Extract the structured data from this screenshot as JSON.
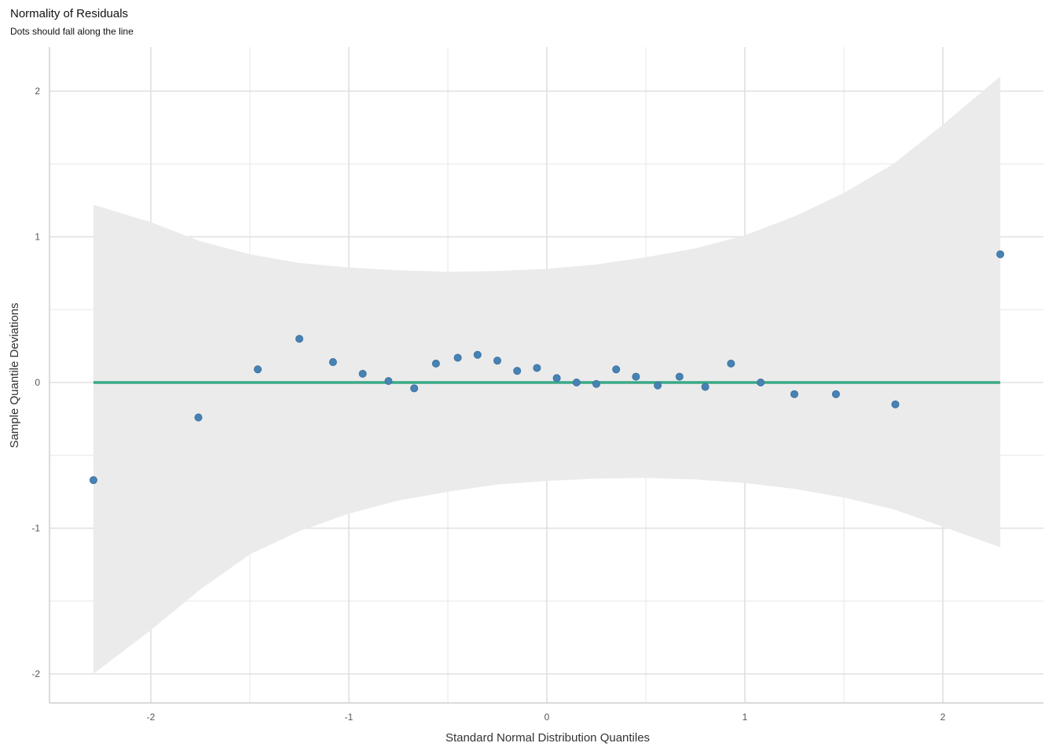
{
  "chart_data": {
    "type": "scatter",
    "title": "Normality of Residuals",
    "subtitle": "Dots should fall along the line",
    "xlabel": "Standard Normal Distribution Quantiles",
    "ylabel": "Sample Quantile Deviations",
    "xlim": [
      -2.5,
      2.5
    ],
    "ylim": [
      -2.2,
      2.3
    ],
    "x_ticks": [
      -2,
      -1,
      0,
      1,
      2
    ],
    "x_tick_labels": [
      "-2",
      "-1",
      "0",
      "1",
      "2"
    ],
    "y_ticks": [
      -2,
      -1,
      0,
      1,
      2
    ],
    "y_tick_labels": [
      "-2",
      "-1",
      "0",
      "1",
      "2"
    ],
    "grid": true,
    "reference_line": {
      "y": 0,
      "x_from": -2.29,
      "x_to": 2.29,
      "color": "#3aa986"
    },
    "band": {
      "color": "#ebebeb",
      "x": [
        -2.29,
        -2.0,
        -1.75,
        -1.5,
        -1.25,
        -1.0,
        -0.75,
        -0.5,
        -0.25,
        0.0,
        0.25,
        0.5,
        0.75,
        1.0,
        1.25,
        1.5,
        1.75,
        2.0,
        2.29
      ],
      "upper": [
        1.22,
        1.1,
        0.97,
        0.88,
        0.82,
        0.79,
        0.77,
        0.76,
        0.765,
        0.78,
        0.81,
        0.86,
        0.92,
        1.01,
        1.14,
        1.3,
        1.5,
        1.77,
        2.1
      ],
      "lower": [
        -2.0,
        -1.7,
        -1.42,
        -1.18,
        -1.02,
        -0.9,
        -0.81,
        -0.75,
        -0.7,
        -0.675,
        -0.66,
        -0.655,
        -0.665,
        -0.69,
        -0.73,
        -0.79,
        -0.87,
        -0.99,
        -1.13
      ]
    },
    "point_color": "#4682b4",
    "points": {
      "x": [
        -2.29,
        -1.76,
        -1.46,
        -1.25,
        -1.08,
        -0.93,
        -0.8,
        -0.67,
        -0.56,
        -0.45,
        -0.35,
        -0.25,
        -0.15,
        -0.05,
        0.05,
        0.15,
        0.25,
        0.35,
        0.45,
        0.56,
        0.67,
        0.8,
        0.93,
        1.08,
        1.25,
        1.46,
        1.76,
        2.29
      ],
      "y": [
        -0.67,
        -0.24,
        0.09,
        0.3,
        0.14,
        0.06,
        0.01,
        -0.04,
        0.13,
        0.17,
        0.19,
        0.15,
        0.08,
        0.1,
        0.03,
        0.0,
        -0.01,
        0.09,
        0.04,
        -0.02,
        0.04,
        -0.03,
        0.13,
        0.0,
        -0.08,
        -0.08,
        -0.15,
        0.88
      ]
    }
  }
}
